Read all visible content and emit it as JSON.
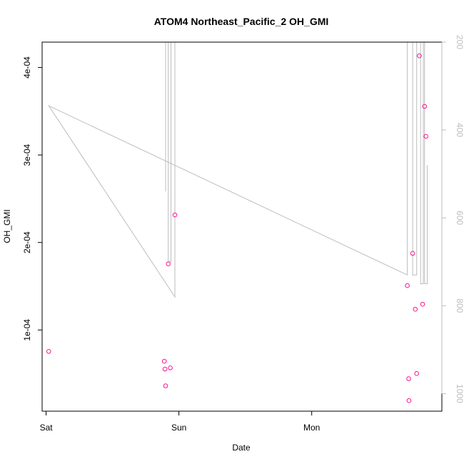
{
  "chart_data": {
    "type": "scatter",
    "title": "ATOM4 Northeast_Pacific_2 OH_GMI",
    "xlabel": "Date",
    "ylabel": "OH_GMI",
    "x_ticks": [
      "Sat",
      "Sun",
      "Mon"
    ],
    "y_ticks": [
      "1e-04",
      "2e-04",
      "3e-04",
      "4e-04"
    ],
    "y_tick_values": [
      0.0001,
      0.0002,
      0.0003,
      0.0004
    ],
    "y_right_ticks": [
      "200",
      "400",
      "600",
      "800",
      "1000"
    ],
    "y_right_tick_values": [
      200,
      400,
      600,
      800,
      1000
    ],
    "xlim_days": [
      -0.03,
      2.98
    ],
    "ylim": [
      7.2e-06,
      0.000429
    ],
    "y_right_lim": [
      1040,
      200
    ],
    "series": [
      {
        "kind": "points",
        "color": "#ff1493",
        "points": [
          {
            "x": 0.02,
            "y": 7.55e-05
          },
          {
            "x": 0.89,
            "y": 6.42e-05
          },
          {
            "x": 0.895,
            "y": 5.53e-05
          },
          {
            "x": 0.9,
            "y": 3.62e-05
          },
          {
            "x": 0.92,
            "y": 0.0001755
          },
          {
            "x": 0.935,
            "y": 5.67e-05
          },
          {
            "x": 0.97,
            "y": 0.0002315
          },
          {
            "x": 2.72,
            "y": 0.0001507
          },
          {
            "x": 2.73,
            "y": 4.43e-05
          },
          {
            "x": 2.732,
            "y": 1.93e-05
          },
          {
            "x": 2.76,
            "y": 0.0001876
          },
          {
            "x": 2.78,
            "y": 0.0001237
          },
          {
            "x": 2.79,
            "y": 5.03e-05
          },
          {
            "x": 2.81,
            "y": 0.0004133
          },
          {
            "x": 2.835,
            "y": 0.0001294
          },
          {
            "x": 2.85,
            "y": 0.0003556
          },
          {
            "x": 2.86,
            "y": 0.0003214
          }
        ]
      },
      {
        "kind": "line",
        "color": "#bdbdbd",
        "axis": "right",
        "points": [
          {
            "x": 0.9,
            "y": 540
          },
          {
            "x": 0.9,
            "y": 200
          },
          {
            "x": 0.92,
            "y": 200
          },
          {
            "x": 0.92,
            "y": 700
          },
          {
            "x": 0.94,
            "y": 700
          },
          {
            "x": 0.94,
            "y": 200
          },
          {
            "x": 0.97,
            "y": 200
          },
          {
            "x": 0.97,
            "y": 780
          },
          {
            "x": 0.02,
            "y": 345
          },
          {
            "x": 2.72,
            "y": 730
          },
          {
            "x": 2.72,
            "y": 200
          },
          {
            "x": 2.76,
            "y": 200
          },
          {
            "x": 2.76,
            "y": 730
          },
          {
            "x": 2.79,
            "y": 730
          },
          {
            "x": 2.79,
            "y": 200
          },
          {
            "x": 2.82,
            "y": 200
          },
          {
            "x": 2.82,
            "y": 750
          },
          {
            "x": 2.84,
            "y": 750
          },
          {
            "x": 2.84,
            "y": 200
          },
          {
            "x": 2.85,
            "y": 200
          },
          {
            "x": 2.85,
            "y": 750
          },
          {
            "x": 2.87,
            "y": 750
          },
          {
            "x": 2.87,
            "y": 480
          }
        ]
      }
    ],
    "grid": false
  }
}
